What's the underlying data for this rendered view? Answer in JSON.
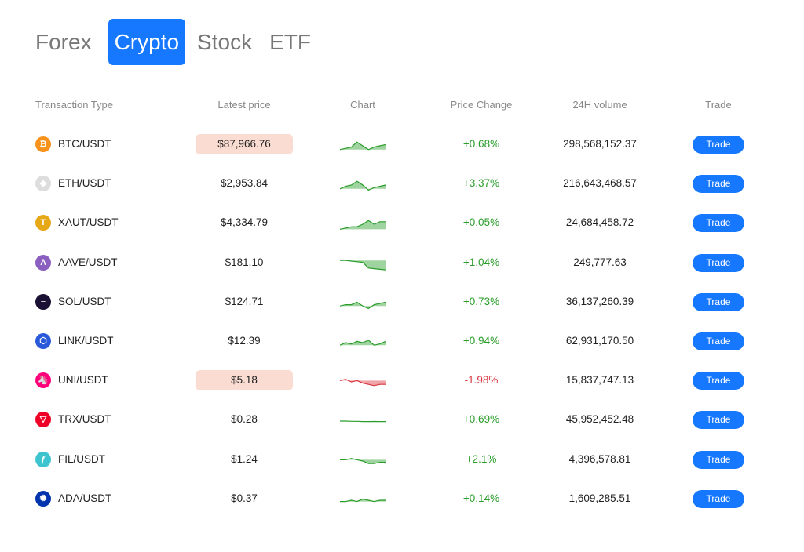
{
  "tabs": [
    "Forex",
    "Crypto",
    "Stock",
    "ETF"
  ],
  "active_tab": 1,
  "headers": {
    "type": "Transaction Type",
    "price": "Latest price",
    "chart": "Chart",
    "change": "Price Change",
    "volume": "24H volume",
    "trade": "Trade"
  },
  "colors": {
    "accent": "#1677ff",
    "up": "#2a9d2a",
    "down": "#d9363e",
    "highlight": "#fadcd2"
  },
  "rows": [
    {
      "pair": "BTC/USDT",
      "icon": "bitcoin-icon",
      "icon_color": "#f7931a",
      "glyph": "₿",
      "price": "$87,966.76",
      "highlight": true,
      "change": "+0.68%",
      "dir": "up",
      "volume": "298,568,152.37",
      "trade": "Trade",
      "spark": [
        2,
        3,
        4,
        8,
        5,
        2,
        4,
        5,
        6
      ]
    },
    {
      "pair": "ETH/USDT",
      "icon": "ethereum-icon",
      "icon_color": "#ddd",
      "glyph": "◆",
      "price": "$2,953.84",
      "highlight": false,
      "change": "+3.37%",
      "dir": "up",
      "volume": "216,643,468.57",
      "trade": "Trade",
      "spark": [
        2,
        4,
        5,
        8,
        5,
        1,
        3,
        4,
        5
      ]
    },
    {
      "pair": "XAUT/USDT",
      "icon": "tether-gold-icon",
      "icon_color": "#e6a817",
      "glyph": "T",
      "price": "$4,334.79",
      "highlight": false,
      "change": "+0.05%",
      "dir": "up",
      "volume": "24,684,458.72",
      "trade": "Trade",
      "spark": [
        1,
        2,
        3,
        3,
        5,
        8,
        5,
        7,
        7
      ]
    },
    {
      "pair": "AAVE/USDT",
      "icon": "aave-icon",
      "icon_color": "#8b5fbf",
      "glyph": "Λ",
      "price": "$181.10",
      "highlight": false,
      "change": "+1.04%",
      "dir": "up",
      "volume": "249,777.63",
      "trade": "Trade",
      "spark": [
        8,
        8,
        7.5,
        7,
        6.5,
        2,
        1.5,
        1,
        0.5
      ]
    },
    {
      "pair": "SOL/USDT",
      "icon": "solana-icon",
      "icon_color": "#1a1033",
      "glyph": "≡",
      "price": "$124.71",
      "highlight": false,
      "change": "+0.73%",
      "dir": "up",
      "volume": "36,137,260.39",
      "trade": "Trade",
      "spark": [
        3,
        4,
        4,
        6,
        3,
        1,
        4,
        5,
        6
      ]
    },
    {
      "pair": "LINK/USDT",
      "icon": "chainlink-icon",
      "icon_color": "#2a5ada",
      "glyph": "⬡",
      "price": "$12.39",
      "highlight": false,
      "change": "+0.94%",
      "dir": "up",
      "volume": "62,931,170.50",
      "trade": "Trade",
      "spark": [
        3,
        5,
        4,
        6,
        5,
        7,
        3,
        4,
        6
      ]
    },
    {
      "pair": "UNI/USDT",
      "icon": "uniswap-icon",
      "icon_color": "#ff007a",
      "glyph": "🦄",
      "price": "$5.18",
      "highlight": true,
      "change": "-1.98%",
      "dir": "down",
      "volume": "15,837,747.13",
      "trade": "Trade",
      "spark": [
        6,
        7,
        5,
        6,
        4,
        3,
        2,
        3,
        3
      ]
    },
    {
      "pair": "TRX/USDT",
      "icon": "tron-icon",
      "icon_color": "#ef0027",
      "glyph": "▽",
      "price": "$0.28",
      "highlight": false,
      "change": "+0.69%",
      "dir": "up",
      "volume": "45,952,452.48",
      "trade": "Trade",
      "spark": [
        5,
        5,
        4.8,
        4.8,
        4.6,
        4.6,
        4.7,
        4.6,
        4.6
      ]
    },
    {
      "pair": "FIL/USDT",
      "icon": "filecoin-icon",
      "icon_color": "#3ec4cf",
      "glyph": "ƒ",
      "price": "$1.24",
      "highlight": false,
      "change": "+2.1%",
      "dir": "up",
      "volume": "4,396,578.81",
      "trade": "Trade",
      "spark": [
        6,
        6,
        7,
        6,
        5,
        3,
        3,
        4,
        4
      ]
    },
    {
      "pair": "ADA/USDT",
      "icon": "cardano-icon",
      "icon_color": "#0033ad",
      "glyph": "✺",
      "price": "$0.37",
      "highlight": false,
      "change": "+0.14%",
      "dir": "up",
      "volume": "1,609,285.51",
      "trade": "Trade",
      "spark": [
        4,
        4,
        5,
        4,
        6,
        5,
        4,
        5,
        5
      ]
    }
  ]
}
